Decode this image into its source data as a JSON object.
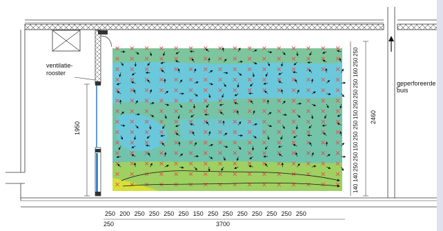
{
  "labels": {
    "vent_line1": "ventilatie-",
    "vent_line2": "rooster",
    "pipe_line1": "geperforeerde",
    "pipe_line2": "buis"
  },
  "dimensions": {
    "window_height": "1950",
    "room_height": "2460",
    "total_width": "3700",
    "left_offset": "250",
    "horizontal_spacing": [
      "250",
      "200",
      "250",
      "250",
      "250",
      "250",
      "150",
      "250",
      "250",
      "250",
      "250",
      "250",
      "250",
      "250"
    ],
    "vertical_spacing": [
      "250",
      "250",
      "160",
      "250",
      "250",
      "250",
      "150",
      "250",
      "250",
      "150",
      "250",
      "250",
      "140",
      "140"
    ]
  },
  "colors": {
    "zone_teal": "#6ec2a6",
    "zone_blue": "#66c8e6",
    "zone_green": "#a8d34a",
    "zone_yellow": "#d6df3c",
    "marker_red": "#e0504a",
    "arrow_black": "#111111",
    "window_blue": "#3a86c8"
  },
  "icons": {
    "grid_marker": "red-x-marker",
    "vector": "velocity-arrow",
    "hatch": "insulation-hatch"
  }
}
